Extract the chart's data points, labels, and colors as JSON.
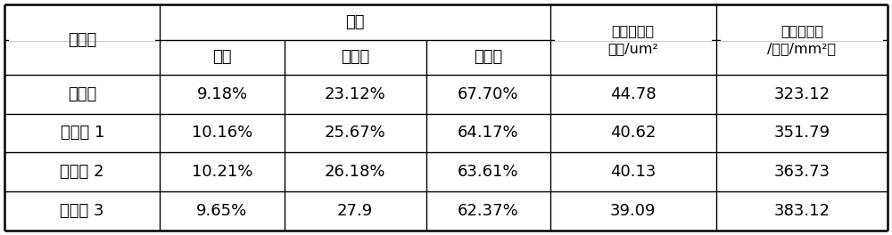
{
  "figsize": [
    10.0,
    2.64
  ],
  "dpi": 100,
  "bg_color": "#ffffff",
  "line_color": "#000000",
  "text_color": "#000000",
  "font_size": 13,
  "small_font_size": 11.5,
  "col_props": [
    0.148,
    0.118,
    0.135,
    0.118,
    0.158,
    0.163
  ],
  "n_header_rows": 2,
  "n_data_rows": 4,
  "header1_texts": {
    "col0": "实施例",
    "col1_3": "形状",
    "col4": "夹杂物平均\n面积/um²",
    "col5": "夹杂物数量\n/（个/mm²）"
  },
  "header2_texts": [
    "圆形",
    "纺锥形",
    "长条形"
  ],
  "rows": [
    [
      "对比例",
      "9.18%",
      "23.12%",
      "67.70%",
      "44.78",
      "323.12"
    ],
    [
      "实施例 1",
      "10.16%",
      "25.67%",
      "64.17%",
      "40.62",
      "351.79"
    ],
    [
      "实施例 2",
      "10.21%",
      "26.18%",
      "63.61%",
      "40.13",
      "363.73"
    ],
    [
      "实施例 3",
      "9.65%",
      "27.9",
      "62.37%",
      "39.09",
      "383.12"
    ]
  ]
}
